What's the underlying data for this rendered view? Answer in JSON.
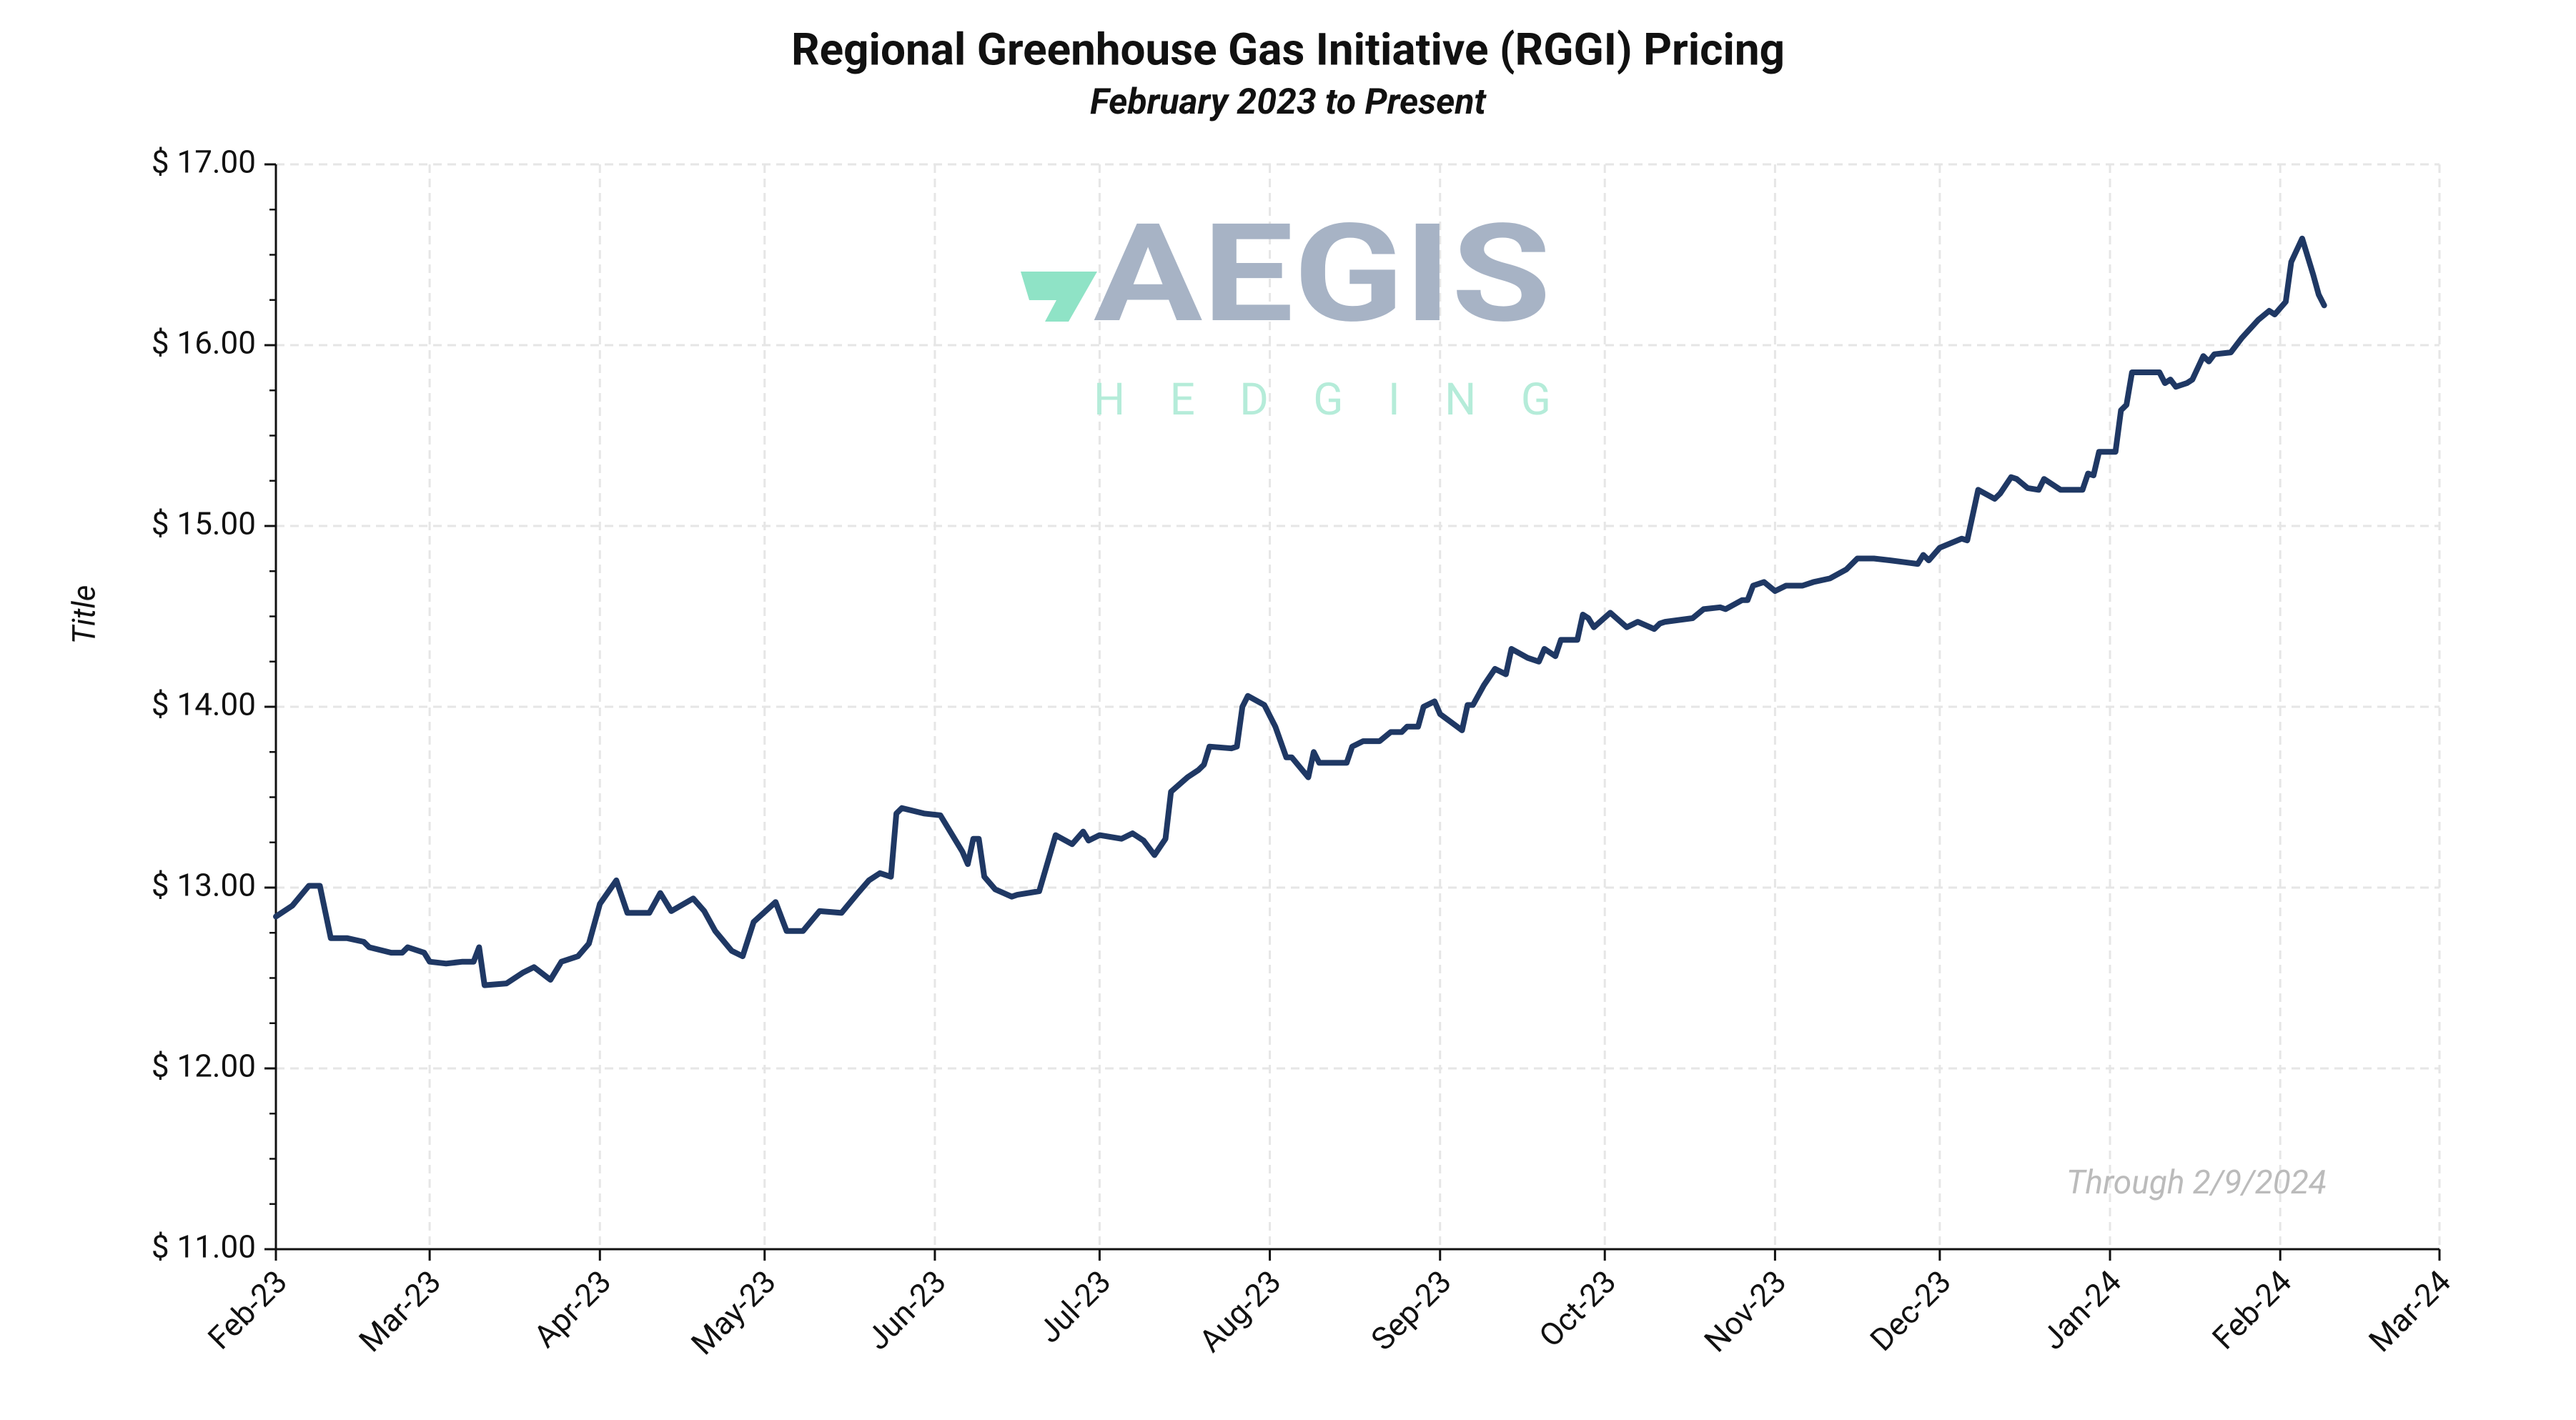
{
  "chart_data": {
    "type": "line",
    "title": "Regional Greenhouse Gas Initiative (RGGI) Pricing",
    "subtitle": "February 2023 to Present",
    "y_label": "Title",
    "annotation": "Through 2/9/2024",
    "watermark": {
      "text": "AEGIS",
      "subtext": "HEDGING"
    },
    "grid": true,
    "xlim": [
      "2023-02-01",
      "2024-03-01"
    ],
    "xticks": [
      {
        "value": "2023-02-01",
        "label": "Feb-23"
      },
      {
        "value": "2023-03-01",
        "label": "Mar-23"
      },
      {
        "value": "2023-04-01",
        "label": "Apr-23"
      },
      {
        "value": "2023-05-01",
        "label": "May-23"
      },
      {
        "value": "2023-06-01",
        "label": "Jun-23"
      },
      {
        "value": "2023-07-01",
        "label": "Jul-23"
      },
      {
        "value": "2023-08-01",
        "label": "Aug-23"
      },
      {
        "value": "2023-09-01",
        "label": "Sep-23"
      },
      {
        "value": "2023-10-01",
        "label": "Oct-23"
      },
      {
        "value": "2023-11-01",
        "label": "Nov-23"
      },
      {
        "value": "2023-12-01",
        "label": "Dec-23"
      },
      {
        "value": "2024-01-01",
        "label": "Jan-24"
      },
      {
        "value": "2024-02-01",
        "label": "Feb-24"
      },
      {
        "value": "2024-03-01",
        "label": "Mar-24"
      }
    ],
    "ylim": [
      11,
      17
    ],
    "yticks": [
      {
        "value": 11,
        "label": "$ 11.00"
      },
      {
        "value": 12,
        "label": "$ 12.00"
      },
      {
        "value": 13,
        "label": "$ 13.00"
      },
      {
        "value": 14,
        "label": "$ 14.00"
      },
      {
        "value": 15,
        "label": "$ 15.00"
      },
      {
        "value": 16,
        "label": "$ 16.00"
      },
      {
        "value": 17,
        "label": "$ 17.00"
      }
    ],
    "yminorticks": [
      11.25,
      11.5,
      11.75,
      12.25,
      12.5,
      12.75,
      13.25,
      13.5,
      13.75,
      14.25,
      14.5,
      14.75,
      15.25,
      15.5,
      15.75,
      16.25,
      16.5,
      16.75
    ],
    "x": [
      "2023-02-01",
      "2023-02-04",
      "2023-02-07",
      "2023-02-09",
      "2023-02-11",
      "2023-02-14",
      "2023-02-17",
      "2023-02-18",
      "2023-02-22",
      "2023-02-24",
      "2023-02-25",
      "2023-02-28",
      "2023-03-01",
      "2023-03-04",
      "2023-03-07",
      "2023-03-09",
      "2023-03-10",
      "2023-03-11",
      "2023-03-15",
      "2023-03-18",
      "2023-03-20",
      "2023-03-23",
      "2023-03-25",
      "2023-03-28",
      "2023-03-30",
      "2023-04-01",
      "2023-04-04",
      "2023-04-06",
      "2023-04-10",
      "2023-04-12",
      "2023-04-14",
      "2023-04-18",
      "2023-04-20",
      "2023-04-22",
      "2023-04-25",
      "2023-04-27",
      "2023-04-29",
      "2023-05-03",
      "2023-05-05",
      "2023-05-08",
      "2023-05-11",
      "2023-05-15",
      "2023-05-18",
      "2023-05-20",
      "2023-05-22",
      "2023-05-24",
      "2023-05-25",
      "2023-05-26",
      "2023-05-30",
      "2023-06-02",
      "2023-06-06",
      "2023-06-07",
      "2023-06-08",
      "2023-06-09",
      "2023-06-10",
      "2023-06-12",
      "2023-06-15",
      "2023-06-16",
      "2023-06-20",
      "2023-06-23",
      "2023-06-26",
      "2023-06-28",
      "2023-06-29",
      "2023-07-01",
      "2023-07-05",
      "2023-07-07",
      "2023-07-09",
      "2023-07-11",
      "2023-07-13",
      "2023-07-14",
      "2023-07-17",
      "2023-07-19",
      "2023-07-20",
      "2023-07-21",
      "2023-07-25",
      "2023-07-26",
      "2023-07-27",
      "2023-07-28",
      "2023-07-31",
      "2023-08-02",
      "2023-08-04",
      "2023-08-05",
      "2023-08-08",
      "2023-08-09",
      "2023-08-10",
      "2023-08-15",
      "2023-08-16",
      "2023-08-18",
      "2023-08-21",
      "2023-08-23",
      "2023-08-25",
      "2023-08-26",
      "2023-08-28",
      "2023-08-29",
      "2023-08-31",
      "2023-09-01",
      "2023-09-05",
      "2023-09-06",
      "2023-09-07",
      "2023-09-09",
      "2023-09-11",
      "2023-09-13",
      "2023-09-14",
      "2023-09-17",
      "2023-09-19",
      "2023-09-20",
      "2023-09-22",
      "2023-09-23",
      "2023-09-25",
      "2023-09-26",
      "2023-09-27",
      "2023-09-28",
      "2023-09-29",
      "2023-10-02",
      "2023-10-05",
      "2023-10-07",
      "2023-10-10",
      "2023-10-11",
      "2023-10-12",
      "2023-10-17",
      "2023-10-19",
      "2023-10-22",
      "2023-10-23",
      "2023-10-26",
      "2023-10-27",
      "2023-10-28",
      "2023-10-30",
      "2023-11-01",
      "2023-11-03",
      "2023-11-06",
      "2023-11-08",
      "2023-11-11",
      "2023-11-14",
      "2023-11-16",
      "2023-11-19",
      "2023-11-22",
      "2023-11-27",
      "2023-11-28",
      "2023-11-29",
      "2023-12-01",
      "2023-12-05",
      "2023-12-06",
      "2023-12-08",
      "2023-12-11",
      "2023-12-12",
      "2023-12-14",
      "2023-12-15",
      "2023-12-17",
      "2023-12-19",
      "2023-12-20",
      "2023-12-23",
      "2023-12-27",
      "2023-12-28",
      "2023-12-29",
      "2023-12-30",
      "2024-01-02",
      "2024-01-03",
      "2024-01-04",
      "2024-01-05",
      "2024-01-10",
      "2024-01-11",
      "2024-01-12",
      "2024-01-13",
      "2024-01-15",
      "2024-01-16",
      "2024-01-18",
      "2024-01-19",
      "2024-01-20",
      "2024-01-23",
      "2024-01-25",
      "2024-01-28",
      "2024-01-30",
      "2024-01-31",
      "2024-02-02",
      "2024-02-03",
      "2024-02-05",
      "2024-02-07",
      "2024-02-08",
      "2024-02-09"
    ],
    "series": [
      {
        "name": "RGGI",
        "color": "#1f3864",
        "values": [
          12.84,
          12.9,
          13.01,
          13.01,
          12.72,
          12.72,
          12.7,
          12.67,
          12.64,
          12.64,
          12.67,
          12.64,
          12.59,
          12.58,
          12.59,
          12.59,
          12.67,
          12.46,
          12.47,
          12.53,
          12.56,
          12.49,
          12.59,
          12.62,
          12.69,
          12.91,
          13.04,
          12.86,
          12.86,
          12.97,
          12.87,
          12.94,
          12.87,
          12.76,
          12.65,
          12.62,
          12.81,
          12.92,
          12.76,
          12.76,
          12.87,
          12.86,
          12.97,
          13.04,
          13.08,
          13.06,
          13.41,
          13.44,
          13.41,
          13.4,
          13.2,
          13.13,
          13.27,
          13.27,
          13.06,
          12.99,
          12.95,
          12.96,
          12.98,
          13.29,
          13.24,
          13.31,
          13.26,
          13.29,
          13.27,
          13.3,
          13.26,
          13.18,
          13.27,
          13.53,
          13.61,
          13.65,
          13.68,
          13.78,
          13.77,
          13.78,
          14.0,
          14.06,
          14.01,
          13.89,
          13.72,
          13.72,
          13.61,
          13.75,
          13.69,
          13.69,
          13.78,
          13.81,
          13.81,
          13.86,
          13.86,
          13.89,
          13.89,
          14.0,
          14.03,
          13.96,
          13.87,
          14.01,
          14.01,
          14.12,
          14.21,
          14.18,
          14.32,
          14.27,
          14.25,
          14.32,
          14.28,
          14.37,
          14.37,
          14.37,
          14.51,
          14.49,
          14.44,
          14.52,
          14.44,
          14.47,
          14.43,
          14.46,
          14.47,
          14.49,
          14.54,
          14.55,
          14.54,
          14.59,
          14.59,
          14.67,
          14.69,
          14.64,
          14.67,
          14.67,
          14.69,
          14.71,
          14.76,
          14.82,
          14.82,
          14.81,
          14.79,
          14.84,
          14.81,
          14.88,
          14.93,
          14.92,
          15.2,
          15.15,
          15.18,
          15.27,
          15.26,
          15.21,
          15.2,
          15.26,
          15.2,
          15.2,
          15.29,
          15.28,
          15.41,
          15.41,
          15.64,
          15.67,
          15.85,
          15.85,
          15.79,
          15.81,
          15.77,
          15.79,
          15.81,
          15.94,
          15.91,
          15.95,
          15.96,
          16.04,
          16.14,
          16.19,
          16.17,
          16.24,
          16.46,
          16.59,
          16.39,
          16.28,
          16.22
        ]
      }
    ]
  }
}
